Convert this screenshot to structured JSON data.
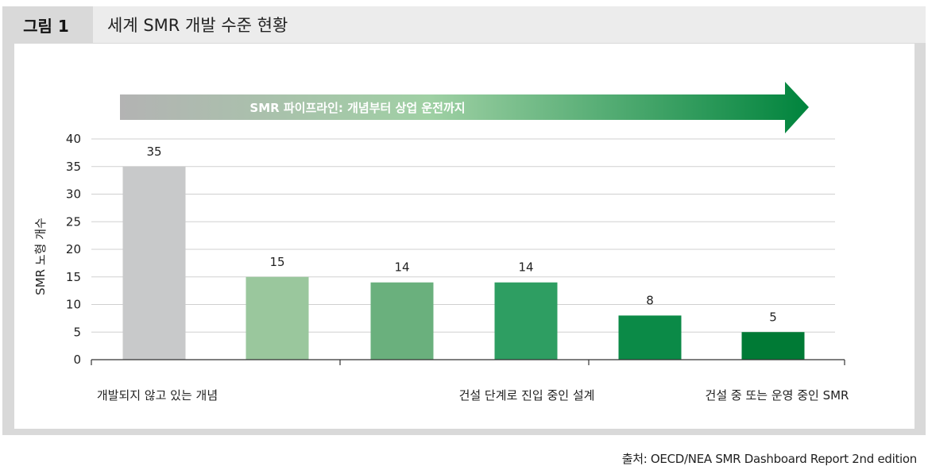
{
  "header": {
    "figure_label": "그림 1",
    "title": "세계 SMR 개발 수준 현황"
  },
  "pipeline_arrow": {
    "label": "SMR 파이프라인: 개념부터 상업 운전까지",
    "gradient_colors": [
      "#b3b3b3",
      "#9fd0a4",
      "#00843d"
    ]
  },
  "chart_data": {
    "type": "bar",
    "ylabel": "SMR 노형 개수",
    "xlabel": "",
    "ylim": [
      0,
      40
    ],
    "yticks": [
      0,
      5,
      10,
      15,
      20,
      25,
      30,
      35,
      40
    ],
    "grid": true,
    "values": [
      35,
      15,
      14,
      14,
      8,
      5
    ],
    "bar_colors": [
      "#c8c9ca",
      "#9ac79d",
      "#6ab07d",
      "#2e9e62",
      "#0b8a47",
      "#007a35"
    ],
    "groups": [
      {
        "label": "개발되지 않고 있는 개념",
        "bars": [
          0,
          1
        ]
      },
      {
        "label": "건설 단계로 진입 중인 설계",
        "bars": [
          2,
          3
        ]
      },
      {
        "label": "건설 중 또는 운영 중인 SMR",
        "bars": [
          4,
          5
        ]
      }
    ]
  },
  "source": "출처: OECD/NEA SMR Dashboard Report 2nd edition"
}
